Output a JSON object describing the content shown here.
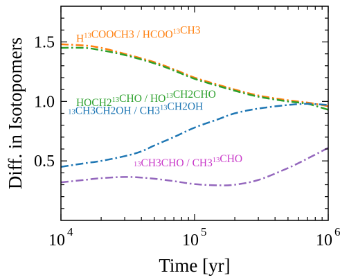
{
  "chart_data": {
    "type": "line",
    "xlabel": "Time [yr]",
    "ylabel": "Diff. in Isotopomers",
    "xscale": "log",
    "xlim": [
      10000,
      1000000
    ],
    "ylim": [
      0,
      1.8
    ],
    "x_ticks": [
      {
        "value": 10000,
        "base": "10",
        "exp": "4"
      },
      {
        "value": 100000,
        "base": "10",
        "exp": "5"
      },
      {
        "value": 1000000,
        "base": "10",
        "exp": "6"
      }
    ],
    "y_ticks": [
      {
        "value": 0.5,
        "label": "0.5"
      },
      {
        "value": 1.0,
        "label": "1.0"
      },
      {
        "value": 1.5,
        "label": "1.5"
      }
    ],
    "grid": false,
    "legend": "none",
    "series": [
      {
        "color": "#ff7f0e",
        "x": [
          10000,
          15000,
          20000,
          30000,
          50000,
          70000,
          100000,
          150000,
          200000,
          300000,
          500000,
          700000,
          1000000
        ],
        "y": [
          1.48,
          1.47,
          1.45,
          1.4,
          1.33,
          1.27,
          1.2,
          1.14,
          1.1,
          1.05,
          1.01,
          0.99,
          0.96
        ]
      },
      {
        "color": "#2ca02c",
        "x": [
          10000,
          15000,
          20000,
          30000,
          50000,
          70000,
          100000,
          150000,
          200000,
          300000,
          500000,
          700000,
          1000000
        ],
        "y": [
          1.45,
          1.45,
          1.43,
          1.39,
          1.32,
          1.26,
          1.19,
          1.13,
          1.09,
          1.04,
          1.0,
          0.98,
          0.93
        ]
      },
      {
        "color": "#1f77b4",
        "x": [
          10000,
          15000,
          20000,
          30000,
          40000,
          50000,
          70000,
          100000,
          150000,
          200000,
          300000,
          500000,
          700000,
          1000000
        ],
        "y": [
          0.45,
          0.48,
          0.5,
          0.54,
          0.58,
          0.63,
          0.7,
          0.78,
          0.85,
          0.9,
          0.94,
          0.97,
          0.98,
          0.97
        ]
      },
      {
        "color": "#9467bd",
        "x": [
          10000,
          15000,
          20000,
          30000,
          40000,
          50000,
          70000,
          100000,
          150000,
          200000,
          300000,
          500000,
          700000,
          1000000
        ],
        "y": [
          0.32,
          0.34,
          0.355,
          0.365,
          0.36,
          0.35,
          0.33,
          0.305,
          0.295,
          0.3,
          0.34,
          0.44,
          0.52,
          0.61
        ]
      }
    ],
    "annotations": [
      {
        "color": "#ff7f0e",
        "x": 13000,
        "y": 1.5,
        "parts": [
          [
            "H",
            ""
          ],
          [
            "13",
            "sup"
          ],
          [
            "COOCH3 / HCOO",
            ""
          ],
          [
            "13",
            "sup"
          ],
          [
            "CH3",
            ""
          ]
        ]
      },
      {
        "color": "#2ca02c",
        "x": 13000,
        "y": 0.96,
        "parts": [
          [
            "HOCH2",
            ""
          ],
          [
            "13",
            "sup"
          ],
          [
            "CHO / HO",
            ""
          ],
          [
            "13",
            "sup"
          ],
          [
            "CH2CHO",
            ""
          ]
        ]
      },
      {
        "color": "#1f77b4",
        "x": 11300,
        "y": 0.86,
        "parts": [
          [
            "13",
            "sup"
          ],
          [
            "CH3CH2OH / CH3",
            ""
          ],
          [
            "13",
            "sup"
          ],
          [
            "CH2OH",
            ""
          ]
        ]
      },
      {
        "color": "#c837c8",
        "x": 35000,
        "y": 0.42,
        "parts": [
          [
            "13",
            "sup"
          ],
          [
            "CH3CHO / CH3",
            ""
          ],
          [
            "13",
            "sup"
          ],
          [
            "CHO",
            ""
          ]
        ]
      }
    ]
  }
}
